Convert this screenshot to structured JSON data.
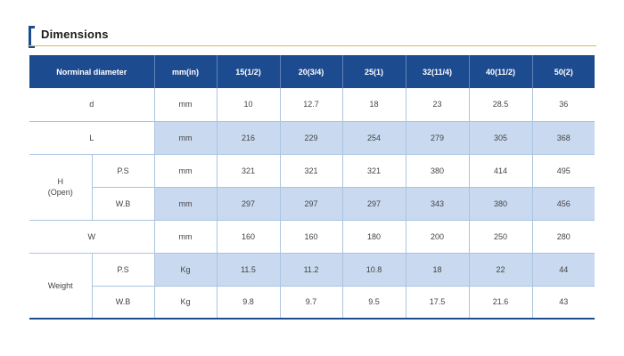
{
  "section": {
    "title": "Dimensions"
  },
  "table": {
    "header": {
      "diameter_label": "Norminal diameter",
      "unit_label": "mm(in)",
      "sizes": [
        "15(1/2)",
        "20(3/4)",
        "25(1)",
        "32(11/4)",
        "40(11/2)",
        "50(2)"
      ]
    },
    "rows": [
      {
        "label": "d",
        "unit": "mm",
        "values": [
          "10",
          "12.7",
          "18",
          "23",
          "28.5",
          "36"
        ]
      },
      {
        "label": "L",
        "unit": "mm",
        "values": [
          "216",
          "229",
          "254",
          "279",
          "305",
          "368"
        ]
      },
      {
        "group": "H",
        "group_sub": "(Open)",
        "sub": "P.S",
        "unit": "mm",
        "values": [
          "321",
          "321",
          "321",
          "380",
          "414",
          "495"
        ]
      },
      {
        "sub": "W.B",
        "unit": "mm",
        "values": [
          "297",
          "297",
          "297",
          "343",
          "380",
          "456"
        ]
      },
      {
        "label": "W",
        "unit": "mm",
        "values": [
          "160",
          "160",
          "180",
          "200",
          "250",
          "280"
        ]
      },
      {
        "group": "Weight",
        "sub": "P.S",
        "unit": "Kg",
        "values": [
          "11.5",
          "11.2",
          "10.8",
          "18",
          "22",
          "44"
        ]
      },
      {
        "sub": "W.B",
        "unit": "Kg",
        "values": [
          "9.8",
          "9.7",
          "9.5",
          "17.5",
          "21.6",
          "43"
        ]
      }
    ]
  }
}
